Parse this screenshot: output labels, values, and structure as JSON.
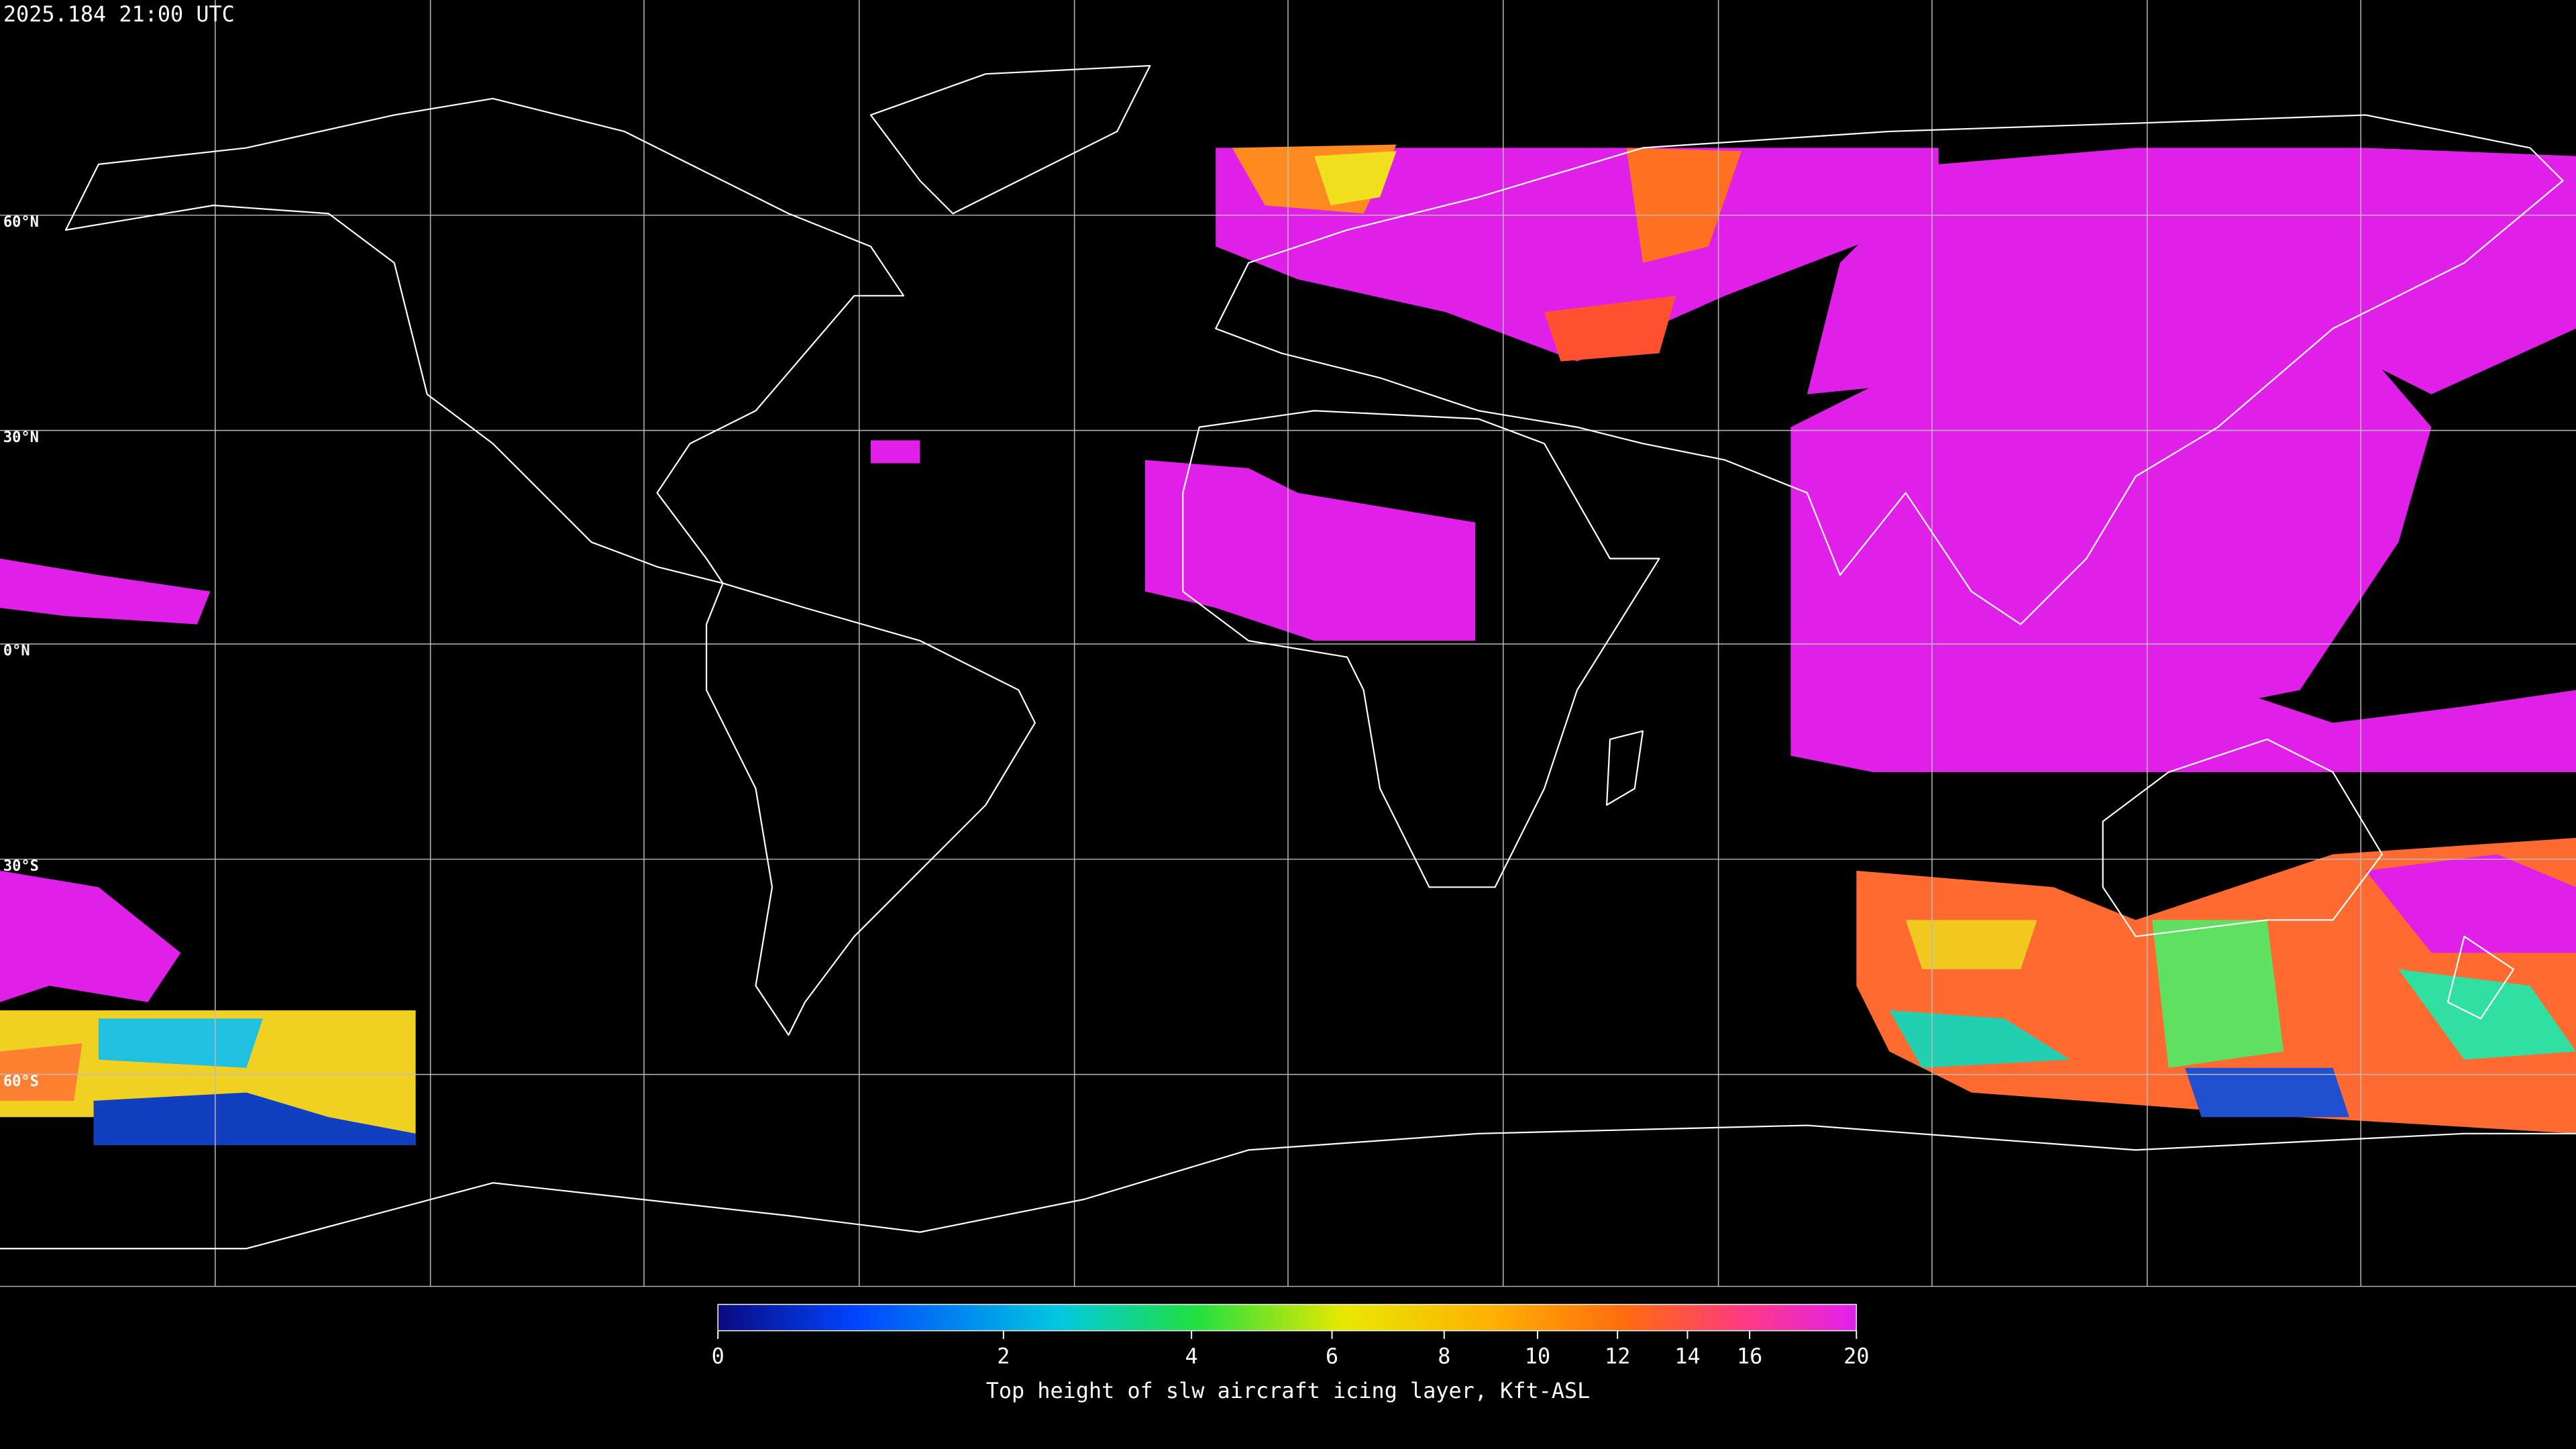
{
  "header": {
    "timestamp": "2025.184 21:00 UTC"
  },
  "map": {
    "latitude_labels": [
      "60°N",
      "30°N",
      "0°N",
      "30°S",
      "60°S"
    ]
  },
  "colorbar": {
    "label": "Top height of slw aircraft icing layer, Kft-ASL",
    "min": 0,
    "max": 20,
    "ticks": [
      0,
      2,
      4,
      6,
      8,
      10,
      12,
      14,
      16,
      20
    ]
  }
}
